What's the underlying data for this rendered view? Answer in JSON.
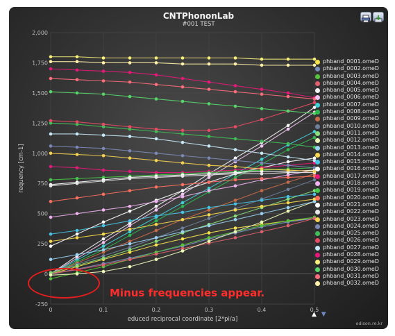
{
  "window": {
    "title": "CNTPhononLab",
    "subtitle": "#001 TEST"
  },
  "toolbar": {
    "print_icon": "print-icon",
    "save_icon": "save-icon"
  },
  "annotation": {
    "text": "Minus frequencies appear."
  },
  "watermark": "edison.re.kr",
  "nav": {
    "up": "▲",
    "down": "▼"
  },
  "chart_data": {
    "type": "line",
    "title": "CNTPhononLab",
    "subtitle": "#001 TEST",
    "xlabel": "educed reciprocal coordinate [2*pi/a]",
    "ylabel": "requency [cm-1]",
    "xlim": [
      0,
      0.5
    ],
    "ylim": [
      -250,
      2000
    ],
    "xticks": [
      "0",
      "0.1",
      "0.2",
      "0.3",
      "0.4",
      "0.5"
    ],
    "yticks": [
      "-250",
      "0",
      "250",
      "500",
      "750",
      "1,000",
      "1,250",
      "1,500",
      "1,750",
      "2,000"
    ],
    "grid": true,
    "legend_position": "right",
    "x": [
      0,
      0.05,
      0.1,
      0.15,
      0.2,
      0.25,
      0.3,
      0.35,
      0.4,
      0.45,
      0.5
    ],
    "series": [
      {
        "name": "phband_0001.omeD",
        "color": "#f6e24a",
        "values": [
          0,
          60,
          120,
          180,
          240,
          290,
          340,
          380,
          410,
          440,
          460
        ]
      },
      {
        "name": "phband_0002.omeD",
        "color": "#7b8fbf",
        "values": [
          0,
          40,
          85,
          130,
          180,
          230,
          290,
          340,
          390,
          430,
          460
        ]
      },
      {
        "name": "phband_0003.omeD",
        "color": "#56c43c",
        "values": [
          -40,
          10,
          60,
          120,
          180,
          240,
          300,
          350,
          400,
          440,
          470
        ]
      },
      {
        "name": "phband_0004.omeD",
        "color": "#e0606e",
        "values": [
          0,
          35,
          75,
          120,
          165,
          210,
          255,
          300,
          350,
          400,
          460
        ]
      },
      {
        "name": "phband_0005.omeD",
        "color": "#f5f5f5",
        "values": [
          0,
          150,
          290,
          420,
          560,
          690,
          830,
          960,
          1090,
          1230,
          1380
        ]
      },
      {
        "name": "phband_0006.omeD",
        "color": "#f2c6f2",
        "values": [
          0,
          130,
          260,
          400,
          530,
          660,
          800,
          930,
          1060,
          1200,
          1340
        ]
      },
      {
        "name": "phband_0007.omeD",
        "color": "#3fd0d8",
        "values": [
          0,
          115,
          230,
          350,
          470,
          590,
          710,
          830,
          950,
          1070,
          1180
        ]
      },
      {
        "name": "phband_0008.omeD",
        "color": "#2fb84d",
        "values": [
          0,
          100,
          200,
          320,
          440,
          560,
          680,
          800,
          910,
          1030,
          1130
        ]
      },
      {
        "name": "phband_0009.omeD",
        "color": "#c86b4a",
        "values": [
          5,
          90,
          180,
          270,
          360,
          450,
          530,
          610,
          690,
          760,
          830
        ]
      },
      {
        "name": "phband_0010.omeD",
        "color": "#6e7f9c",
        "values": [
          10,
          80,
          150,
          220,
          300,
          380,
          460,
          540,
          620,
          700,
          780
        ]
      },
      {
        "name": "phband_0011.omeD",
        "color": "#8adf7a",
        "values": [
          10,
          70,
          130,
          200,
          270,
          340,
          410,
          480,
          550,
          620,
          690
        ]
      },
      {
        "name": "phband_0012.omeD",
        "color": "#eef8b8",
        "values": [
          -10,
          0,
          20,
          60,
          120,
          190,
          270,
          350,
          430,
          520,
          600
        ]
      },
      {
        "name": "phband_0013.omeD",
        "color": "#9ad4f5",
        "values": [
          120,
          160,
          200,
          250,
          300,
          350,
          400,
          450,
          500,
          550,
          600
        ]
      },
      {
        "name": "phband_0014.omeD",
        "color": "#f6d84e",
        "values": [
          270,
          300,
          330,
          370,
          410,
          450,
          490,
          530,
          560,
          590,
          620
        ]
      },
      {
        "name": "phband_0015.omeD",
        "color": "#46c3e6",
        "values": [
          330,
          360,
          400,
          440,
          480,
          510,
          550,
          580,
          610,
          640,
          660
        ]
      },
      {
        "name": "phband_0016.omeD",
        "color": "#ffffff",
        "values": [
          230,
          330,
          430,
          520,
          610,
          690,
          760,
          830,
          880,
          930,
          960
        ]
      },
      {
        "name": "phband_0017.omeD",
        "color": "#e8187a",
        "values": [
          890,
          880,
          860,
          850,
          840,
          840,
          850,
          860,
          880,
          900,
          920
        ]
      },
      {
        "name": "phband_0018.omeD",
        "color": "#f0b2f0",
        "values": [
          470,
          500,
          530,
          560,
          600,
          640,
          690,
          730,
          780,
          820,
          860
        ]
      },
      {
        "name": "phband_0019.omeD",
        "color": "#45c949",
        "values": [
          780,
          790,
          800,
          810,
          820,
          830,
          840,
          850,
          860,
          870,
          880
        ]
      },
      {
        "name": "phband_0020.omeD",
        "color": "#ff6f5e",
        "values": [
          600,
          630,
          660,
          690,
          720,
          740,
          760,
          780,
          790,
          800,
          810
        ]
      },
      {
        "name": "phband_0021.omeD",
        "color": "#ffffff",
        "values": [
          740,
          760,
          780,
          800,
          810,
          820,
          830,
          840,
          850,
          850,
          860
        ]
      },
      {
        "name": "phband_0022.omeD",
        "color": "#e8e8e8",
        "values": [
          730,
          750,
          770,
          790,
          800,
          810,
          820,
          830,
          830,
          840,
          840
        ]
      },
      {
        "name": "phband_0023.omeD",
        "color": "#f4d250",
        "values": [
          1000,
          990,
          980,
          960,
          940,
          920,
          900,
          890,
          870,
          860,
          850
        ]
      },
      {
        "name": "phband_0024.omeD",
        "color": "#7c88b6",
        "values": [
          1060,
          1050,
          1040,
          1020,
          1000,
          980,
          960,
          940,
          920,
          900,
          880
        ]
      },
      {
        "name": "phband_0025.omeD",
        "color": "#3fbf57",
        "values": [
          1250,
          1240,
          1220,
          1200,
          1180,
          1160,
          1140,
          1120,
          1100,
          1080,
          1050
        ]
      },
      {
        "name": "phband_0026.omeD",
        "color": "#e84a63",
        "values": [
          1270,
          1260,
          1240,
          1220,
          1200,
          1190,
          1190,
          1220,
          1280,
          1350,
          1420
        ]
      },
      {
        "name": "phband_0027.omeD",
        "color": "#c8eaf8",
        "values": [
          1160,
          1160,
          1150,
          1140,
          1120,
          1090,
          1060,
          1030,
          1000,
          970,
          940
        ]
      },
      {
        "name": "phband_0028.omeD",
        "color": "#e8187a",
        "values": [
          1700,
          1690,
          1680,
          1670,
          1650,
          1620,
          1590,
          1560,
          1530,
          1500,
          1460
        ]
      },
      {
        "name": "phband_0029.omeD",
        "color": "#f7f07a",
        "values": [
          1800,
          1800,
          1790,
          1790,
          1790,
          1790,
          1790,
          1790,
          1780,
          1780,
          1780
        ]
      },
      {
        "name": "phband_0030.omeD",
        "color": "#57d66a",
        "values": [
          1510,
          1500,
          1490,
          1470,
          1450,
          1430,
          1410,
          1390,
          1370,
          1350,
          1330
        ]
      },
      {
        "name": "phband_0031.omeD",
        "color": "#ff6d7b",
        "values": [
          1620,
          1610,
          1600,
          1590,
          1570,
          1550,
          1530,
          1510,
          1490,
          1470,
          1450
        ]
      },
      {
        "name": "phband_0032.omeD",
        "color": "#fff2a8",
        "values": [
          1760,
          1760,
          1750,
          1750,
          1750,
          1740,
          1740,
          1740,
          1730,
          1730,
          1730
        ]
      }
    ]
  }
}
